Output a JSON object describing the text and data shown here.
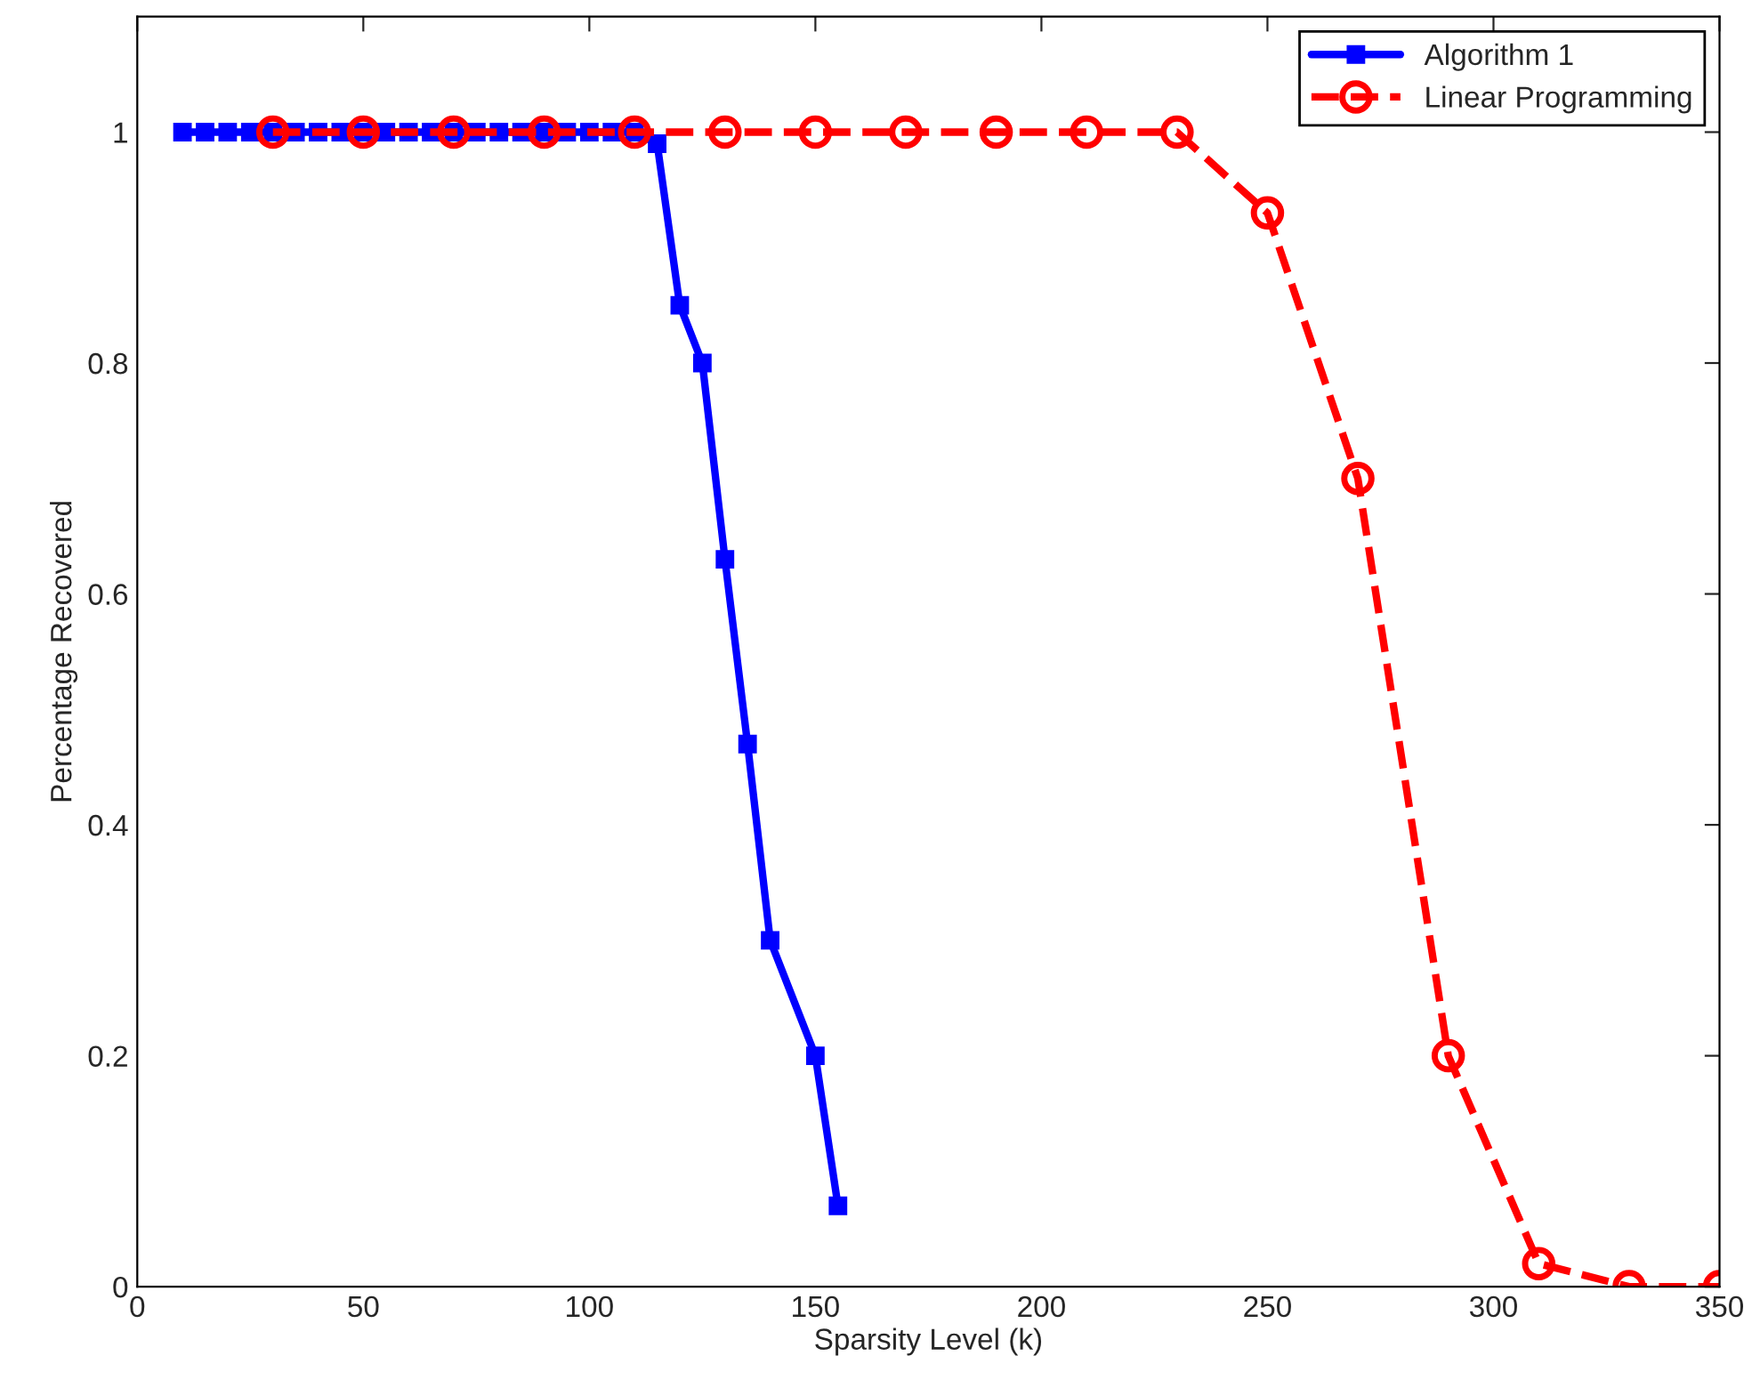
{
  "chart_data": {
    "type": "line",
    "xlabel": "Sparsity Level (k)",
    "ylabel": "Percentage Recovered",
    "xlim": [
      0,
      350
    ],
    "xticks": [
      0,
      50,
      100,
      150,
      200,
      250,
      300,
      350
    ],
    "ylim": [
      0,
      1.1
    ],
    "yticks": [
      0,
      0.2,
      0.4,
      0.6,
      0.8,
      1
    ],
    "grid": false,
    "legend": "top right",
    "series": [
      {
        "name": "Algorithm 1",
        "color": "#0000ff",
        "marker": "square",
        "line_style": "solid",
        "x": [
          10,
          15,
          20,
          25,
          30,
          35,
          40,
          45,
          50,
          55,
          60,
          65,
          70,
          75,
          80,
          85,
          90,
          95,
          100,
          105,
          110,
          115,
          120,
          125,
          130,
          135,
          140,
          150,
          155
        ],
        "values": [
          1,
          1,
          1,
          1,
          1,
          1,
          1,
          1,
          1,
          1,
          1,
          1,
          1,
          1,
          1,
          1,
          1,
          1,
          1,
          1,
          1,
          0.99,
          0.85,
          0.8,
          0.63,
          0.47,
          0.3,
          0.2,
          0.07
        ]
      },
      {
        "name": "Linear Programming",
        "color": "#ff0000",
        "marker": "circle",
        "line_style": "dashed",
        "x": [
          30,
          50,
          70,
          90,
          110,
          130,
          150,
          170,
          190,
          210,
          230,
          250,
          270,
          290,
          310,
          330,
          350
        ],
        "values": [
          1,
          1,
          1,
          1,
          1,
          1,
          1,
          1,
          1,
          1,
          1,
          0.93,
          0.7,
          0.2,
          0.02,
          0,
          0
        ]
      }
    ]
  }
}
